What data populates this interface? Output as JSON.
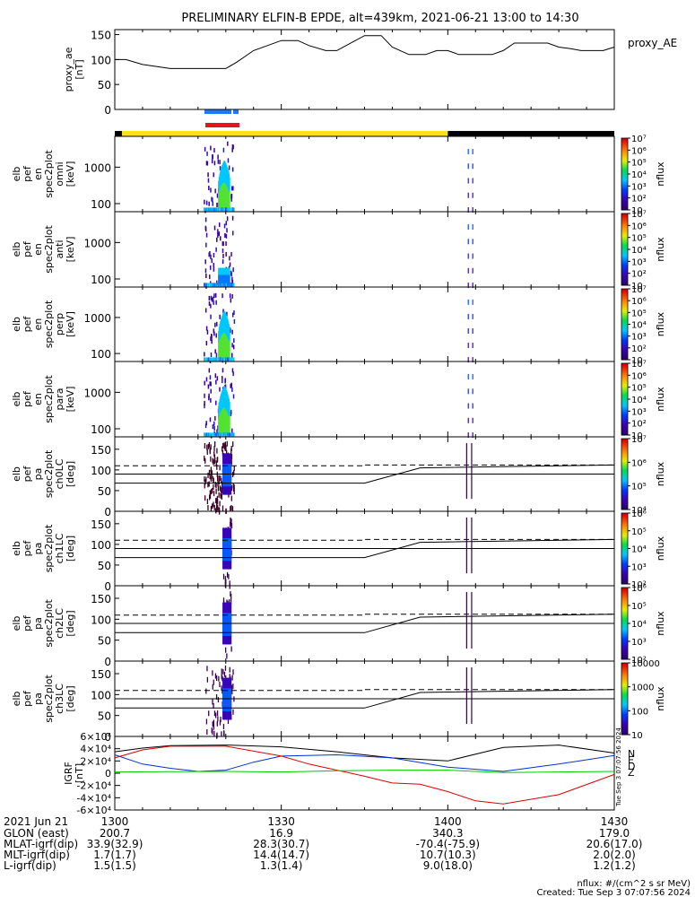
{
  "title": "PRELIMINARY ELFIN-B EPDE, alt=439km, 2021-06-21 13:00 to 14:30",
  "time_axis": {
    "tick_labels": [
      "1300",
      "1330",
      "1400",
      "1430"
    ],
    "ticks_min": [
      0,
      30,
      60,
      90
    ],
    "range_min": [
      0,
      90
    ]
  },
  "colors": {
    "fast_bar": "#1f78ff",
    "slow_bar": "#e8141a",
    "day": "#ffe21a",
    "night": "#000000",
    "igrf_n": "#000000",
    "igrf_e": "#0033cc",
    "igrf_d": "#dd0000",
    "igrf_z": "#00cc00"
  },
  "panels": [
    {
      "ylabel": [
        "proxy_ae",
        "[nT]"
      ],
      "right_label": "proxy_AE"
    },
    {
      "ylabel": [
        "elb",
        "pef",
        "en",
        "spec2plot",
        "omni",
        "[keV]"
      ],
      "right_label": "nflux"
    },
    {
      "ylabel": [
        "elb",
        "pef",
        "en",
        "spec2plot",
        "anti",
        "[keV]"
      ],
      "right_label": "nflux"
    },
    {
      "ylabel": [
        "elb",
        "pef",
        "en",
        "spec2plot",
        "perp",
        "[keV]"
      ],
      "right_label": "nflux"
    },
    {
      "ylabel": [
        "elb",
        "pef",
        "en",
        "spec2plot",
        "para",
        "[keV]"
      ],
      "right_label": "nflux"
    },
    {
      "ylabel": [
        "elb",
        "pef",
        "pa",
        "spec2plot",
        "ch0LC",
        "[deg]"
      ],
      "right_label": "nflux"
    },
    {
      "ylabel": [
        "elb",
        "pef",
        "pa",
        "spec2plot",
        "ch1LC",
        "[deg]"
      ],
      "right_label": "nflux"
    },
    {
      "ylabel": [
        "elb",
        "pef",
        "pa",
        "spec2plot",
        "ch2LC",
        "[deg]"
      ],
      "right_label": "nflux"
    },
    {
      "ylabel": [
        "elb",
        "pef",
        "pa",
        "spec2plot",
        "ch3LC",
        "[deg]"
      ],
      "right_label": "nflux"
    },
    {
      "ylabel": [
        "IGRF",
        "[nT]"
      ],
      "right_label": ""
    }
  ],
  "ytick_labels": {
    "ae": [
      "0",
      "50",
      "100",
      "150"
    ],
    "energy": [
      "100",
      "1000"
    ],
    "pa": [
      "0",
      "50",
      "100",
      "150"
    ],
    "igrf": [
      "-6×10⁴",
      "-4×10⁴",
      "-2×10⁴",
      "0",
      "2×10⁴",
      "4×10⁴",
      "6×10⁴"
    ]
  },
  "colorbar_labels": {
    "energy": [
      "10",
      "10²",
      "10³",
      "10⁴",
      "10⁵",
      "10⁶",
      "10⁷"
    ],
    "ch0": [
      "10⁴",
      "10⁵",
      "10⁶",
      "10⁷"
    ],
    "ch1": [
      "10²",
      "10³",
      "10⁴",
      "10⁵",
      "10⁶"
    ],
    "ch2": [
      "10²",
      "10³",
      "10⁴",
      "10⁵",
      "10⁶"
    ],
    "ch3": [
      "10",
      "100",
      "1000",
      "10000"
    ]
  },
  "igrf_legend": [
    "N",
    "E",
    "D",
    "Z"
  ],
  "chart_data": {
    "type": "line",
    "title": "PRELIMINARY ELFIN-B EPDE, alt=439km, 2021-06-21 13:00 to 14:30",
    "x_unit": "minutes after 2021-06-21 13:00",
    "proxy_ae": {
      "ylim": [
        0,
        160
      ],
      "x": [
        0,
        2,
        5,
        10,
        15,
        20,
        22,
        25,
        30,
        33,
        35,
        38,
        40,
        45,
        48,
        50,
        53,
        56,
        58,
        60,
        62,
        64,
        66,
        68,
        70,
        72,
        74,
        76,
        78,
        80,
        82,
        84,
        86,
        88,
        90
      ],
      "values": [
        100,
        100,
        90,
        82,
        82,
        82,
        95,
        118,
        138,
        138,
        128,
        118,
        118,
        148,
        148,
        125,
        110,
        110,
        118,
        118,
        110,
        110,
        110,
        110,
        118,
        133,
        133,
        133,
        133,
        125,
        122,
        118,
        118,
        118,
        125
      ]
    },
    "lc_angles_deg": {
      "lc": [
        68,
        68,
        68,
        68,
        68,
        105,
        112
      ],
      "lc_x": [
        0,
        20,
        40,
        45,
        45,
        55,
        90
      ],
      "alc": [
        110,
        110,
        110,
        110,
        112,
        112,
        112
      ]
    },
    "igrf": {
      "ylim": [
        -60000,
        60000
      ],
      "series": [
        {
          "name": "N",
          "x": [
            0,
            5,
            10,
            20,
            30,
            40,
            50,
            60,
            70,
            80,
            90
          ],
          "values": [
            35000,
            41000,
            45000,
            46000,
            43000,
            35000,
            25000,
            20000,
            42000,
            46000,
            33000
          ]
        },
        {
          "name": "E",
          "x": [
            0,
            5,
            10,
            15,
            20,
            25,
            30,
            40,
            50,
            60,
            70,
            80,
            90
          ],
          "values": [
            30000,
            15000,
            8000,
            3000,
            5000,
            18000,
            28000,
            30000,
            25000,
            10000,
            3000,
            15000,
            29000
          ]
        },
        {
          "name": "D",
          "x": [
            0,
            5,
            10,
            20,
            30,
            35,
            40,
            45,
            50,
            55,
            60,
            65,
            70,
            80,
            90
          ],
          "values": [
            25000,
            38000,
            44000,
            44000,
            28000,
            15000,
            5000,
            -5000,
            -16000,
            -18000,
            -30000,
            -45000,
            -50000,
            -35000,
            -2000
          ]
        },
        {
          "name": "Z",
          "x": [
            0,
            10,
            20,
            30,
            40,
            50,
            60,
            70,
            80,
            90
          ],
          "values": [
            2000,
            2500,
            3000,
            2000,
            4000,
            5000,
            5000,
            1000,
            2000,
            3000
          ]
        }
      ]
    }
  },
  "footer_labels": {
    "date": "2021 Jun 21",
    "rows": [
      {
        "label": "GLON (east)",
        "values": [
          "200.7",
          "16.9",
          "340.3",
          "179.0"
        ]
      },
      {
        "label": "MLAT-igrf(dip)",
        "values": [
          "33.9(32.9)",
          "28.3(30.7)",
          "-70.4(-75.9)",
          "20.6(17.0)"
        ]
      },
      {
        "label": "MLT-igrf(dip)",
        "values": [
          "1.7(1.7)",
          "14.4(14.7)",
          "10.7(10.3)",
          "2.0(2.0)"
        ]
      },
      {
        "label": "L-igrf(dip)",
        "values": [
          "1.5(1.5)",
          "1.3(1.4)",
          "9.0(18.0)",
          "1.2(1.2)"
        ]
      }
    ]
  },
  "footer_notes": {
    "units": "nflux: #/(cm^2 s sr MeV)",
    "created": "Created: Tue Sep  3 07:07:56 2024",
    "stamp": "Tue Sep  3 07:07:56 2024"
  }
}
